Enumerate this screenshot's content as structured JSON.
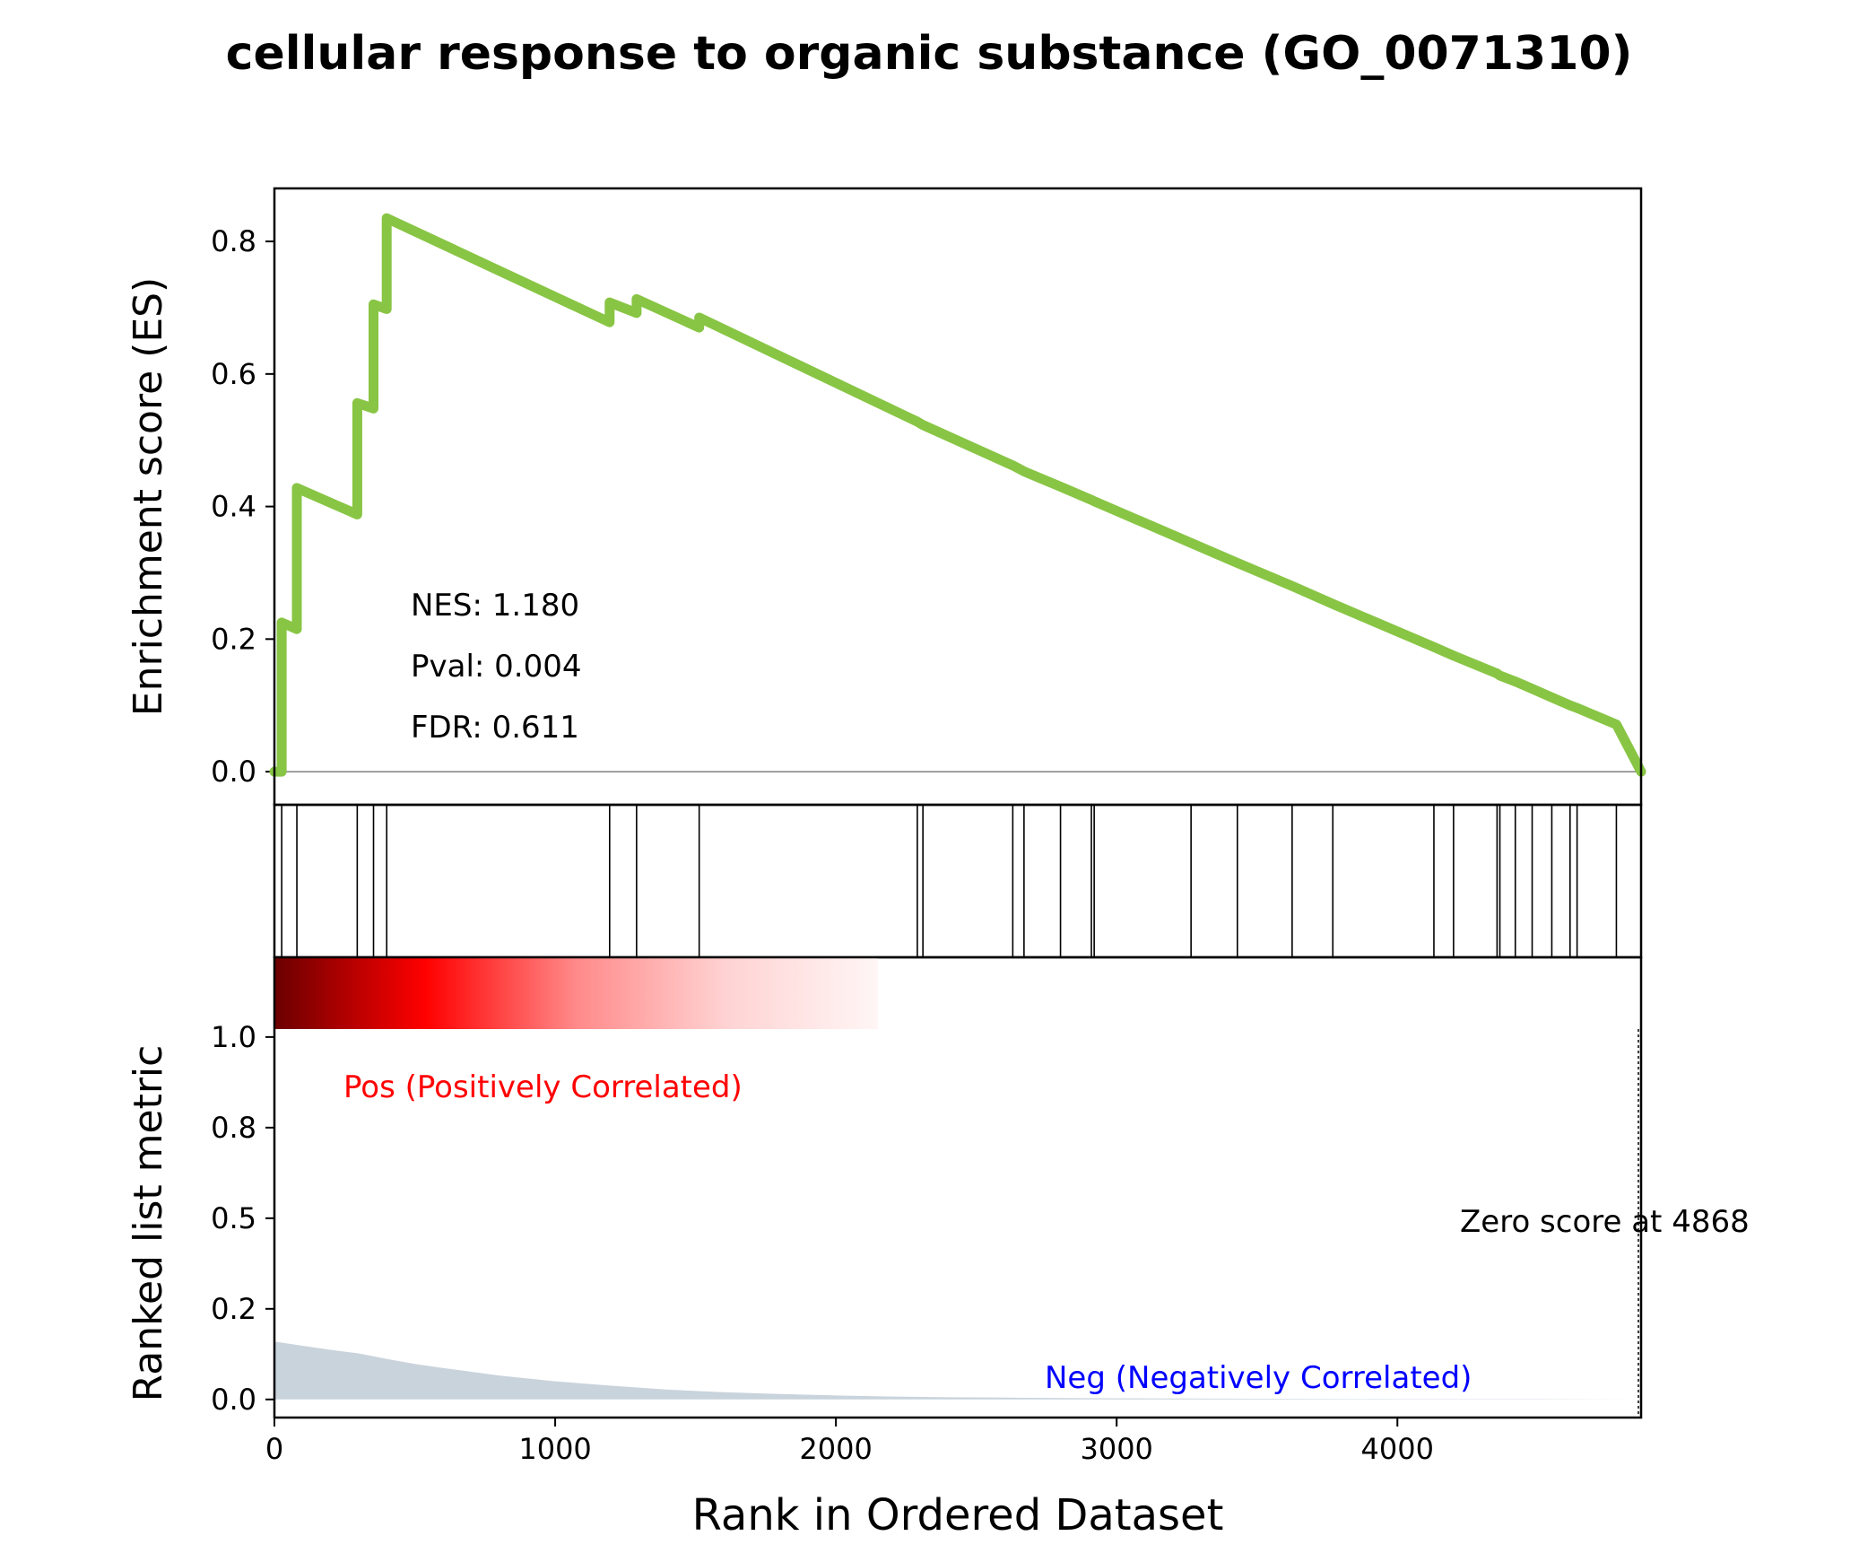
{
  "chart_data": {
    "type": "line",
    "title": "cellular response to organic substance (GO_0071310)",
    "xlabel": "Rank in Ordered Dataset",
    "xlim": [
      0,
      4868
    ],
    "x_ticks": [
      0,
      1000,
      2000,
      3000,
      4000
    ],
    "es_panel": {
      "ylabel": "Enrichment score (ES)",
      "ylim": [
        -0.05,
        0.88
      ],
      "y_ticks": [
        0.0,
        0.2,
        0.4,
        0.6,
        0.8
      ],
      "y_tick_labels": [
        "0.0",
        "0.2",
        "0.4",
        "0.6",
        "0.8"
      ],
      "line_color": "#88c544",
      "zero_line": true,
      "stats": [
        "NES: 1.180",
        "Pval: 0.004",
        "FDR: 0.611"
      ],
      "series": {
        "x": [
          0,
          26,
          26,
          80,
          80,
          295,
          295,
          353,
          353,
          400,
          400,
          1194,
          1194,
          1290,
          1290,
          1513,
          1513,
          2290,
          2290,
          2310,
          2310,
          2630,
          2630,
          2670,
          2670,
          2800,
          2800,
          2910,
          2910,
          2920,
          2920,
          3265,
          3265,
          3430,
          3430,
          3625,
          3625,
          3770,
          3770,
          4130,
          4130,
          4200,
          4200,
          4355,
          4355,
          4365,
          4365,
          4420,
          4420,
          4480,
          4480,
          4550,
          4550,
          4615,
          4615,
          4640,
          4640,
          4780,
          4780,
          4868
        ],
        "y": [
          0.0,
          0.0,
          0.225,
          0.215,
          0.428,
          0.388,
          0.556,
          0.548,
          0.705,
          0.698,
          0.835,
          0.678,
          0.708,
          0.692,
          0.713,
          0.67,
          0.685,
          0.528,
          0.528,
          0.523,
          0.523,
          0.462,
          0.462,
          0.453,
          0.453,
          0.43,
          0.43,
          0.41,
          0.41,
          0.408,
          0.408,
          0.345,
          0.345,
          0.315,
          0.315,
          0.28,
          0.28,
          0.253,
          0.253,
          0.188,
          0.188,
          0.175,
          0.175,
          0.148,
          0.148,
          0.145,
          0.145,
          0.136,
          0.136,
          0.125,
          0.125,
          0.112,
          0.112,
          0.1,
          0.1,
          0.096,
          0.096,
          0.071,
          0.071,
          0.0
        ]
      }
    },
    "hits": [
      26,
      80,
      295,
      353,
      400,
      1194,
      1290,
      1513,
      2290,
      2310,
      2630,
      2670,
      2800,
      2910,
      2920,
      3265,
      3430,
      3625,
      3770,
      4130,
      4200,
      4355,
      4365,
      4420,
      4480,
      4550,
      4615,
      4640,
      4780
    ],
    "ranked_panel": {
      "ylabel": "Ranked list metric",
      "ylim": [
        -0.05,
        1.22
      ],
      "y_ticks": [
        0.0,
        0.25,
        0.5,
        0.75,
        1.0
      ],
      "y_tick_labels": [
        "0.0",
        "0.2",
        "0.5",
        "0.8",
        "1.0"
      ],
      "fill_color": "#c9d3dc",
      "pos_label": "Pos (Positively Correlated)",
      "pos_color": "#ff0000",
      "neg_label": "Neg (Negatively Correlated)",
      "neg_color": "#0000ff",
      "zero_score_label": "Zero score at 4868",
      "zero_score_rank": 4868,
      "metric": {
        "x": [
          0,
          100,
          200,
          300,
          400,
          500,
          600,
          800,
          1000,
          1200,
          1400,
          1600,
          1800,
          2000,
          2200,
          2400,
          2600,
          3000,
          3500,
          4000,
          4500,
          4868
        ],
        "y": [
          0.16,
          0.148,
          0.137,
          0.127,
          0.112,
          0.098,
          0.087,
          0.066,
          0.05,
          0.038,
          0.027,
          0.02,
          0.015,
          0.011,
          0.008,
          0.006,
          0.005,
          0.003,
          0.002,
          0.001,
          0.001,
          0.0
        ]
      },
      "heat_gradient_end_rank": 2150
    }
  }
}
